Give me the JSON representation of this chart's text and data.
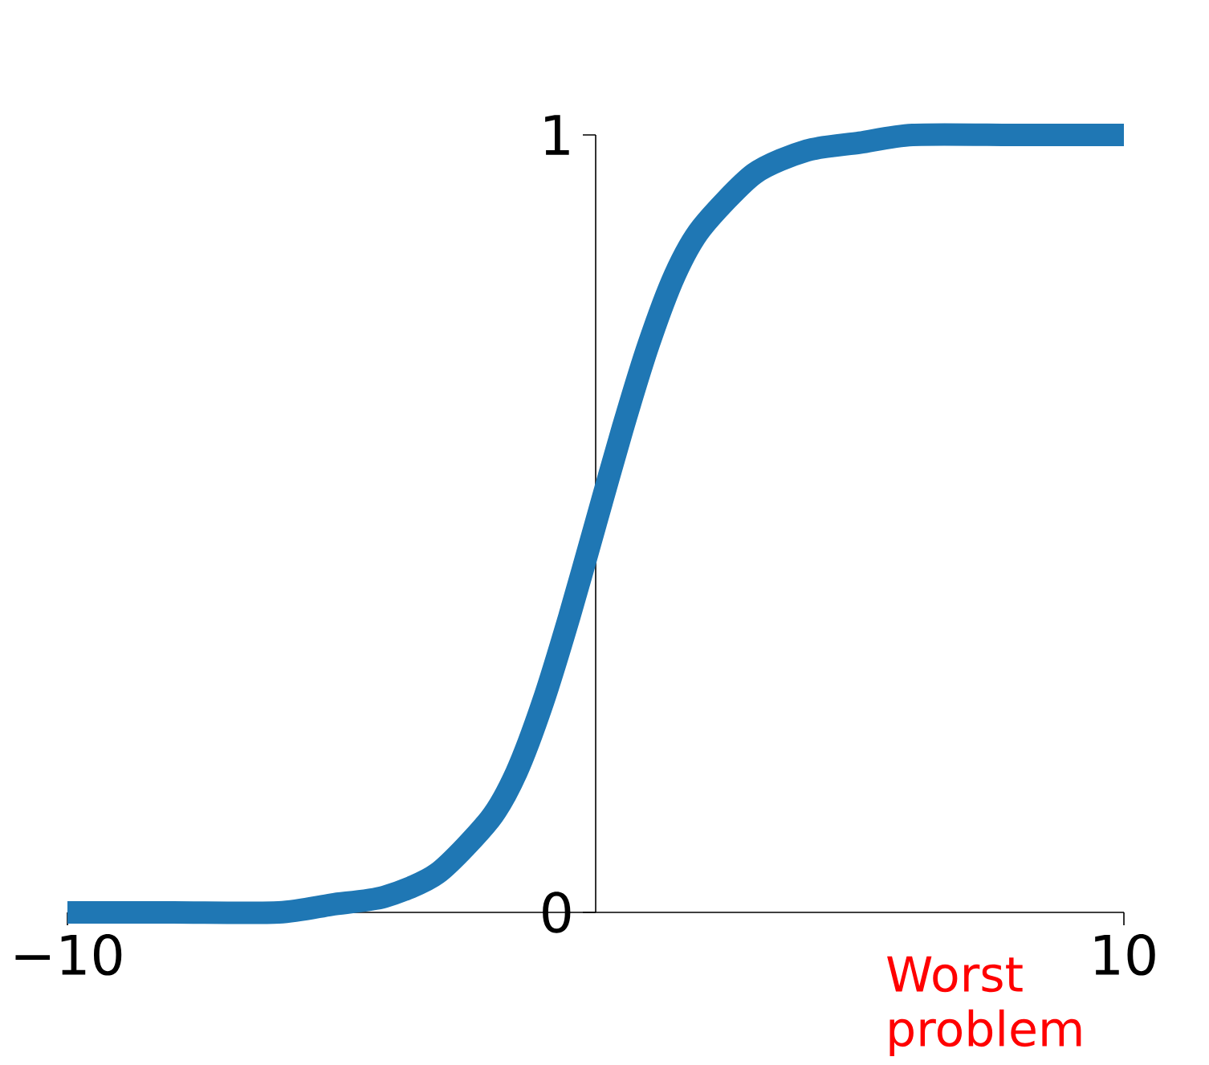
{
  "chart_data": {
    "type": "line",
    "x": [
      -10,
      -8,
      -6,
      -5,
      -4,
      -3,
      -2,
      -1.5,
      -1,
      -0.5,
      0,
      0.5,
      1,
      1.5,
      2,
      3,
      4,
      5,
      6,
      8,
      10
    ],
    "values": [
      0.0,
      0.0,
      0.0,
      0.01,
      0.02,
      0.05,
      0.12,
      0.18,
      0.27,
      0.38,
      0.5,
      0.62,
      0.73,
      0.82,
      0.88,
      0.95,
      0.98,
      0.99,
      1.0,
      1.0,
      1.0
    ],
    "color": "#1f77b4",
    "xlim": [
      -10,
      10
    ],
    "ylim": [
      0,
      1
    ],
    "xticks": [
      {
        "value": -10,
        "label": "−10"
      },
      10
    ],
    "yticks": [
      0,
      1
    ],
    "annotations": [
      "Worst problem"
    ]
  }
}
